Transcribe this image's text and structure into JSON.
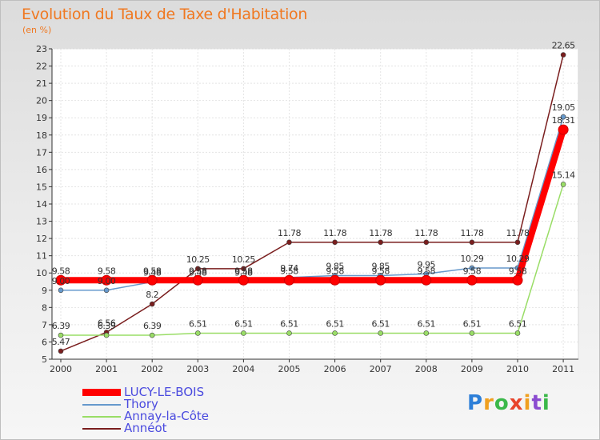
{
  "chart_data": {
    "type": "line",
    "title": "Evolution du Taux de Taxe d'Habitation",
    "subtitle": "(en %)",
    "x": [
      "2000",
      "2001",
      "2002",
      "2003",
      "2004",
      "2005",
      "2006",
      "2007",
      "2008",
      "2009",
      "2010",
      "2011"
    ],
    "ylim": [
      5,
      23
    ],
    "yticks": [
      5,
      6,
      7,
      8,
      9,
      10,
      11,
      12,
      13,
      14,
      15,
      16,
      17,
      18,
      19,
      20,
      21,
      22,
      23
    ],
    "series": [
      {
        "name": "Annéot",
        "color": "#7a1e1e",
        "values": [
          5.47,
          6.56,
          8.2,
          10.25,
          10.25,
          11.78,
          11.78,
          11.78,
          11.78,
          11.78,
          11.78,
          22.65
        ],
        "labels": [
          "5.47",
          "6.56",
          "8.2",
          "10.25",
          "10.25",
          "11.78",
          "11.78",
          "11.78",
          "11.78",
          "11.78",
          "11.78",
          "22.65"
        ]
      },
      {
        "name": "Annay-la-Côte",
        "color": "#99dd66",
        "values": [
          6.39,
          6.39,
          6.39,
          6.51,
          6.51,
          6.51,
          6.51,
          6.51,
          6.51,
          6.51,
          6.51,
          15.14
        ],
        "labels": [
          "6.39",
          "6.39",
          "6.39",
          "6.51",
          "6.51",
          "6.51",
          "6.51",
          "6.51",
          "6.51",
          "6.51",
          "6.51",
          "15.14"
        ]
      },
      {
        "name": "Thory",
        "color": "#6699cc",
        "values": [
          9.0,
          9.0,
          9.48,
          9.48,
          9.48,
          9.74,
          9.85,
          9.85,
          9.95,
          10.29,
          10.29,
          19.05
        ],
        "labels": [
          "9.00",
          "9.00",
          "9.48",
          "9.48",
          "9.48",
          "9.74",
          "9.85",
          "9.85",
          "9.95",
          "10.29",
          "10.29",
          "19.05"
        ]
      },
      {
        "name": "LUCY-LE-BOIS",
        "color": "#ff0000",
        "values": [
          9.58,
          9.58,
          9.58,
          9.58,
          9.58,
          9.58,
          9.58,
          9.58,
          9.58,
          9.58,
          9.58,
          18.31
        ],
        "labels": [
          "9.58",
          "9.58",
          "9.58",
          "9.58",
          "9.58",
          "9.58",
          "9.58",
          "9.58",
          "9.58",
          "9.58",
          "9.58",
          "18.31"
        ]
      }
    ],
    "legend": [
      {
        "name": "LUCY-LE-BOIS",
        "color": "#ff0000",
        "thick": true
      },
      {
        "name": "Thory",
        "color": "#6699cc",
        "thick": false
      },
      {
        "name": "Annay-la-Côte",
        "color": "#99dd66",
        "thick": false
      },
      {
        "name": "Annéot",
        "color": "#7a1e1e",
        "thick": false
      }
    ]
  },
  "logo": {
    "text": "Proxiti"
  }
}
